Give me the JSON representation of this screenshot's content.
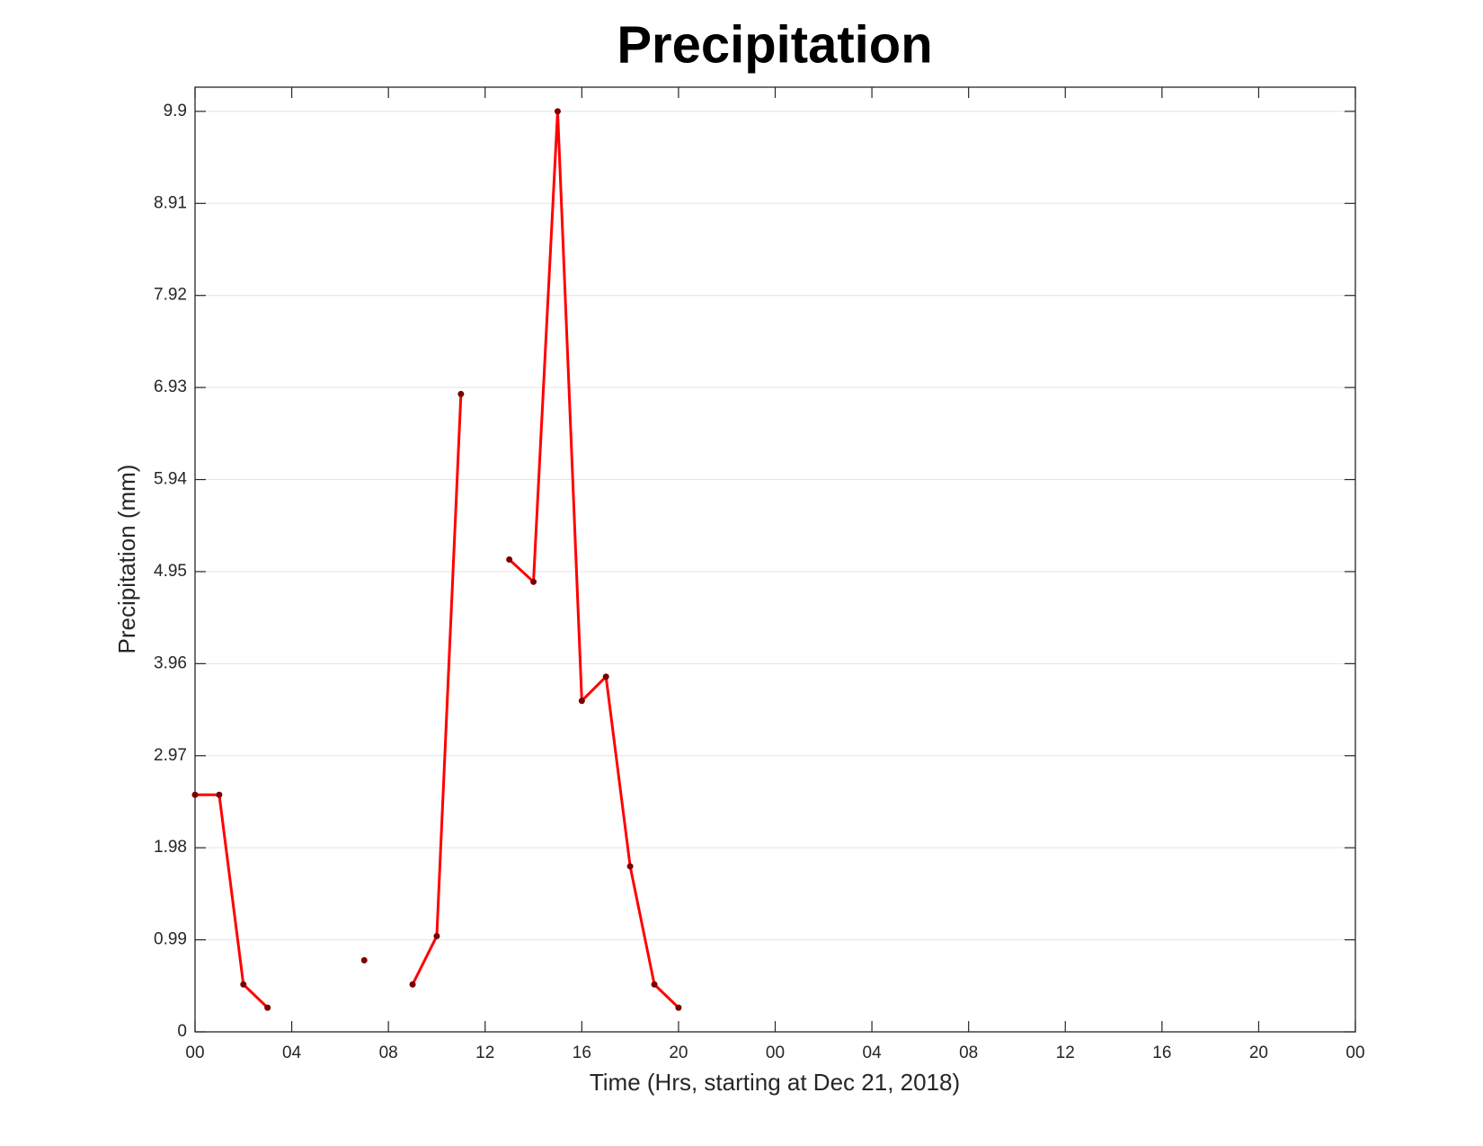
{
  "chart_data": {
    "type": "line",
    "title": "Precipitation",
    "x_label": "Time (Hrs, starting at Dec 21, 2018)",
    "y_label": "Precipitation (mm)",
    "x": [
      0,
      1,
      2,
      3,
      4,
      5,
      6,
      7,
      8,
      9,
      10,
      11,
      12,
      13,
      14,
      15,
      16,
      17,
      18,
      19,
      20
    ],
    "series": [
      {
        "name": "Precipitation",
        "color": "#ff0000",
        "marker_color": "#7a0000",
        "values": [
          2.55,
          2.55,
          0.51,
          0.26,
          null,
          null,
          null,
          0.77,
          null,
          0.51,
          1.03,
          6.86,
          null,
          5.08,
          4.84,
          9.9,
          3.56,
          3.82,
          1.78,
          0.51,
          0.26
        ]
      }
    ],
    "xlim": [
      0,
      48
    ],
    "xticks": [
      {
        "value": 0,
        "label": "00"
      },
      {
        "value": 4,
        "label": "04"
      },
      {
        "value": 8,
        "label": "08"
      },
      {
        "value": 12,
        "label": "12"
      },
      {
        "value": 16,
        "label": "16"
      },
      {
        "value": 20,
        "label": "20"
      },
      {
        "value": 24,
        "label": "00"
      },
      {
        "value": 28,
        "label": "04"
      },
      {
        "value": 32,
        "label": "08"
      },
      {
        "value": 36,
        "label": "12"
      },
      {
        "value": 40,
        "label": "16"
      },
      {
        "value": 44,
        "label": "20"
      },
      {
        "value": 48,
        "label": "00"
      }
    ],
    "ylim": [
      0,
      10.16
    ],
    "yticks": [
      0,
      0.99,
      1.98,
      2.97,
      3.96,
      4.95,
      5.94,
      6.93,
      7.92,
      8.91,
      9.9
    ],
    "grid": true
  }
}
